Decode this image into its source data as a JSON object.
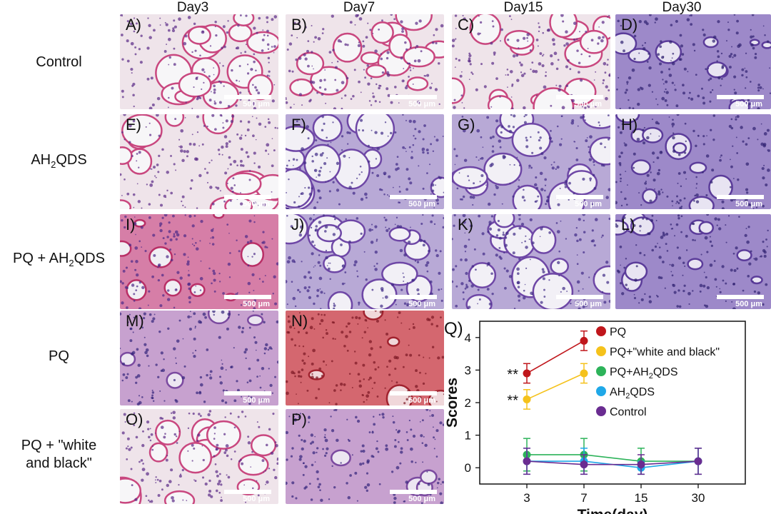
{
  "columns": [
    "Day3",
    "Day7",
    "Day15",
    "Day30"
  ],
  "rows": {
    "control": "Control",
    "ah2qds_pre": "AH",
    "ah2qds_sub": "2",
    "ah2qds_post": "QDS",
    "pq_ah_pre": "PQ + AH",
    "pq_ah_sub": "2",
    "pq_ah_post": "QDS",
    "pq": "PQ",
    "pq_wb_line1": "PQ + \"white",
    "pq_wb_line2": "and black\""
  },
  "panels": [
    {
      "label": "A)",
      "scalebar": "500 μm",
      "tissue": "pink-alveolar"
    },
    {
      "label": "B)",
      "scalebar": "500 μm",
      "tissue": "pink-alveolar"
    },
    {
      "label": "C)",
      "scalebar": "500 μm",
      "tissue": "pink-alveolar"
    },
    {
      "label": "D)",
      "scalebar": "500 μm",
      "tissue": "purple-dense"
    },
    {
      "label": "E)",
      "scalebar": "500 μm",
      "tissue": "pink-alveolar"
    },
    {
      "label": "F)",
      "scalebar": "500 μm",
      "tissue": "purple-alveolar"
    },
    {
      "label": "G)",
      "scalebar": "500 μm",
      "tissue": "purple-alveolar"
    },
    {
      "label": "H)",
      "scalebar": "500 μm",
      "tissue": "purple-dense"
    },
    {
      "label": "I)",
      "scalebar": "500 μm",
      "tissue": "pink-dense"
    },
    {
      "label": "J)",
      "scalebar": "500 μm",
      "tissue": "purple-alveolar"
    },
    {
      "label": "K)",
      "scalebar": "500 μm",
      "tissue": "purple-alveolar"
    },
    {
      "label": "L)",
      "scalebar": "500 μm",
      "tissue": "purple-dense"
    },
    {
      "label": "M)",
      "scalebar": "500 μm",
      "tissue": "inflamed"
    },
    {
      "label": "N)",
      "scalebar": "500 μm",
      "tissue": "hemorrhage"
    },
    {
      "label": "O)",
      "scalebar": "500 μm",
      "tissue": "pink-alveolar"
    },
    {
      "label": "P)",
      "scalebar": "500 μm",
      "tissue": "inflamed"
    }
  ],
  "colors": {
    "pq": "#c0161b",
    "pq_wb": "#f5c21b",
    "pq_ah2qds": "#2db35a",
    "ah2qds": "#1fa8e8",
    "control": "#6a2c91"
  },
  "chart_data": {
    "type": "line",
    "panel_label": "Q)",
    "xlabel": "Time(day)",
    "ylabel": "Scores",
    "x_categories": [
      "3",
      "7",
      "15",
      "30"
    ],
    "ylim": [
      -0.5,
      4.5
    ],
    "yticks": [
      0,
      1,
      2,
      3,
      4
    ],
    "annotations": [
      {
        "text": "**",
        "x": "3",
        "y": 2.9
      },
      {
        "text": "**",
        "x": "3",
        "y": 2.1
      }
    ],
    "series": [
      {
        "name": "PQ",
        "color_key": "pq",
        "x": [
          "3",
          "7"
        ],
        "values": [
          2.9,
          3.9
        ],
        "errors": [
          0.3,
          0.3
        ]
      },
      {
        "name": "PQ+\"white and black\"",
        "color_key": "pq_wb",
        "x": [
          "3",
          "7"
        ],
        "values": [
          2.1,
          2.9
        ],
        "errors": [
          0.3,
          0.3
        ]
      },
      {
        "name": "PQ+AH2QDS",
        "color_key": "pq_ah2qds",
        "x": [
          "3",
          "7",
          "15",
          "30"
        ],
        "values": [
          0.4,
          0.4,
          0.2,
          0.2
        ],
        "errors": [
          0.5,
          0.5,
          0.4,
          0.4
        ]
      },
      {
        "name": "AH2QDS",
        "color_key": "ah2qds",
        "x": [
          "3",
          "7",
          "15",
          "30"
        ],
        "values": [
          0.2,
          0.2,
          0.0,
          0.2
        ],
        "errors": [
          0.4,
          0.4,
          0.2,
          0.4
        ]
      },
      {
        "name": "Control",
        "color_key": "control",
        "x": [
          "3",
          "7",
          "15",
          "30"
        ],
        "values": [
          0.2,
          0.1,
          0.1,
          0.2
        ],
        "errors": [
          0.4,
          0.3,
          0.3,
          0.4
        ]
      }
    ],
    "legend": [
      {
        "pre": "PQ",
        "sub": "",
        "post": ""
      },
      {
        "pre": "PQ+\"white and black\"",
        "sub": "",
        "post": ""
      },
      {
        "pre": "PQ+AH",
        "sub": "2",
        "post": "QDS"
      },
      {
        "pre": "AH",
        "sub": "2",
        "post": "QDS"
      },
      {
        "pre": "Control",
        "sub": "",
        "post": ""
      }
    ]
  }
}
